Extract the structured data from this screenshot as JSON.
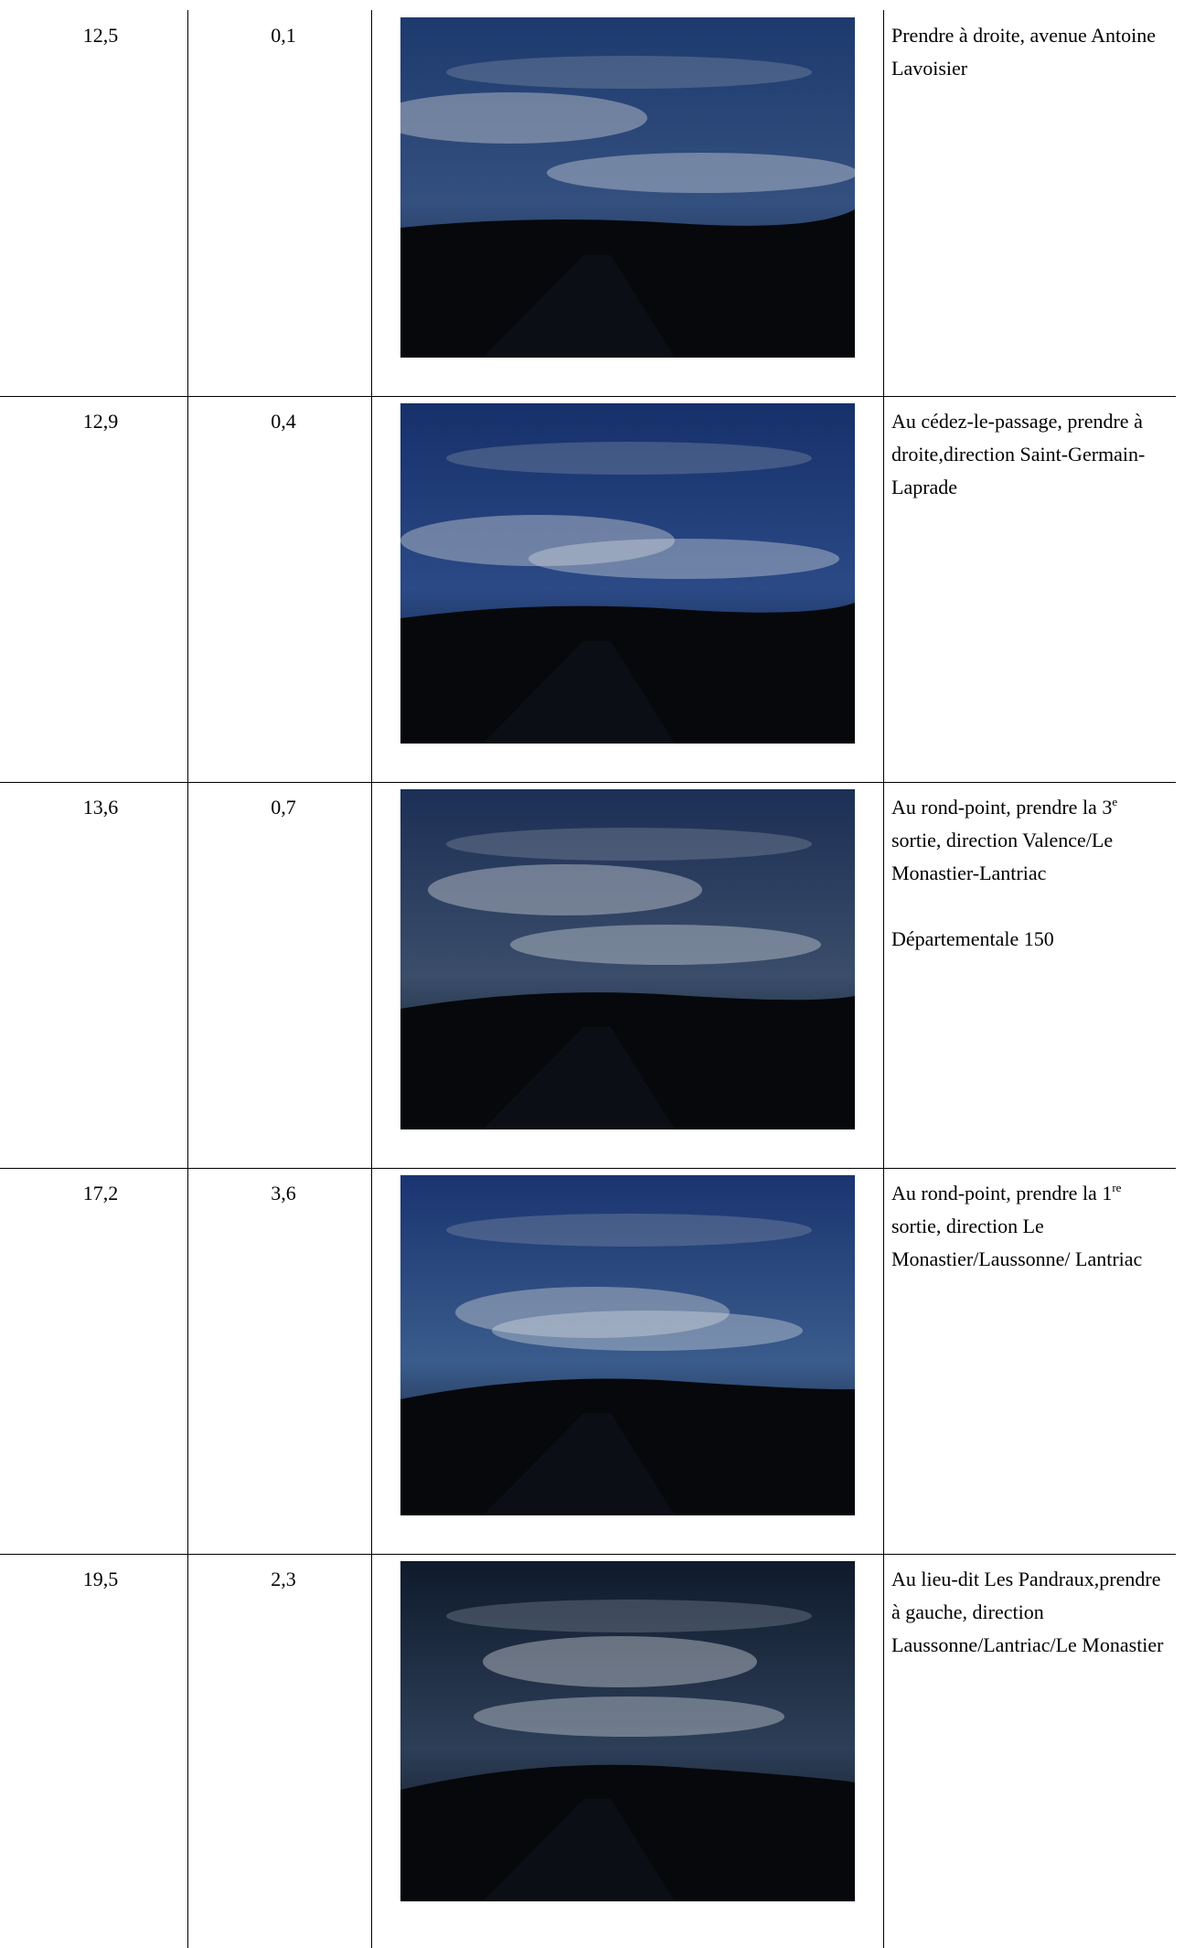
{
  "table": {
    "rows": [
      {
        "km": "12,5",
        "dist": "0,1",
        "instruction": [
          {
            "text": "Prendre à droite, avenue Antoine Lavoisier"
          }
        ]
      },
      {
        "km": "12,9",
        "dist": "0,4",
        "instruction": [
          {
            "text": "Au cédez-le-passage, prendre à droite,direction Saint-Germain-Laprade"
          }
        ]
      },
      {
        "km": "13,6",
        "dist": "0,7",
        "instruction": [
          {
            "text": "Au rond-point, prendre la 3"
          },
          {
            "sup": "e"
          },
          {
            "text": " sortie, direction Valence/Le Monastier-Lantriac"
          }
        ],
        "note": "Départementale 150"
      },
      {
        "km": "17,2",
        "dist": "3,6",
        "instruction": [
          {
            "text": "Au rond-point, prendre la 1"
          },
          {
            "sup": "re"
          },
          {
            "text": " sortie, direction Le Monastier/Laussonne/ Lantriac"
          }
        ]
      },
      {
        "km": "19,5",
        "dist": "2,3",
        "instruction": [
          {
            "text": "Au lieu-dit Les Pandraux,prendre à gauche, direction Laussonne/Lantriac/Le Monastier"
          }
        ]
      }
    ]
  }
}
